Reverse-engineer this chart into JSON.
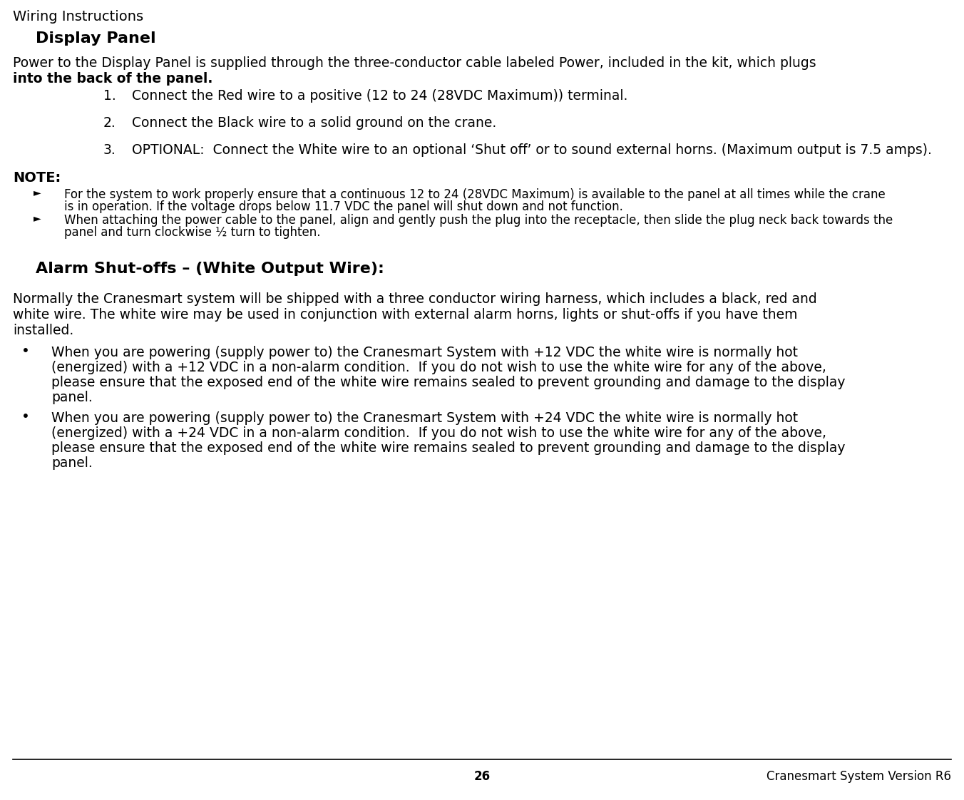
{
  "bg_color": "#ffffff",
  "title": "Wiring Instructions",
  "section1_heading": "Display Panel",
  "numbered_items": [
    "Connect the Red wire to a positive (12 to 24 (28VDC Maximum)) terminal.",
    "Connect the Black wire to a solid ground on the crane.",
    "OPTIONAL:  Connect the White wire to an optional ‘Shut off’ or to sound external horns. (Maximum output is 7.5 amps)."
  ],
  "note_label": "NOTE:",
  "note_bullets": [
    "For the system to work properly ensure that a continuous 12 to 24 (28VDC Maximum) is available to the panel at all times while the crane is in operation. If the voltage drops below 11.7 VDC the panel will shut down and not function.",
    "When attaching the power cable to the panel, align and gently push the plug into the receptacle, then slide the plug neck back towards the panel and turn clockwise ½ turn to tighten."
  ],
  "section2_heading": "Alarm Shut-offs – (White Output Wire):",
  "section2_intro_lines": [
    "Normally the Cranesmart system will be shipped with a three conductor wiring harness, which includes a black, red and",
    "white wire. The white wire may be used in conjunction with external alarm horns, lights or shut-offs if you have them",
    "installed."
  ],
  "bullet_items": [
    [
      "When you are powering (supply power to) the Cranesmart System with +12 VDC the white wire is normally hot",
      "(energized) with a +12 VDC in a non-alarm condition.  If you do not wish to use the white wire for any of the above,",
      "please ensure that the exposed end of the white wire remains sealed to prevent grounding and damage to the display",
      "panel."
    ],
    [
      "When you are powering (supply power to) the Cranesmart System with +24 VDC the white wire is normally hot",
      "(energized) with a +24 VDC in a non-alarm condition.  If you do not wish to use the white wire for any of the above,",
      "please ensure that the exposed end of the white wire remains sealed to prevent grounding and damage to the display",
      "panel."
    ]
  ],
  "footer_page": "26",
  "footer_right": "Cranesmart System Version R6",
  "intro_line1": "Power to the Display Panel is supplied through the three-conductor cable labeled Power, included in the kit, which plugs",
  "intro_line2": "into the back of the panel.",
  "note_bullet1_lines": [
    "For the system to work properly ensure that a continuous 12 to 24 (28VDC Maximum) is available to the panel at all times while the crane",
    "is in operation. If the voltage drops below 11.7 VDC the panel will shut down and not function."
  ],
  "note_bullet2_lines": [
    "When attaching the power cable to the panel, align and gently push the plug into the receptacle, then slide the plug neck back towards the",
    "panel and turn clockwise ½ turn to tighten."
  ]
}
